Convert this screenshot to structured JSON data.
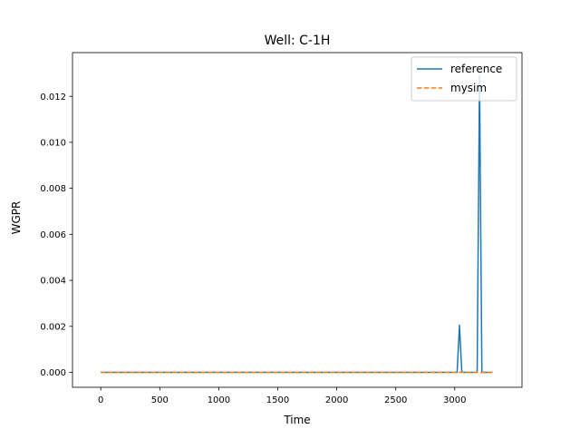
{
  "chart_data": {
    "type": "line",
    "title": "Well: C-1H",
    "xlabel": "Time",
    "ylabel": "WGPR",
    "xlim": [
      -240,
      3570
    ],
    "ylim": [
      -0.00065,
      0.0139
    ],
    "xticks": [
      0,
      500,
      1000,
      1500,
      2000,
      2500,
      3000
    ],
    "xtick_labels": [
      "0",
      "500",
      "1000",
      "1500",
      "2000",
      "2500",
      "3000"
    ],
    "yticks": [
      0.0,
      0.002,
      0.004,
      0.006,
      0.008,
      0.01,
      0.012
    ],
    "ytick_labels": [
      "0.000",
      "0.002",
      "0.004",
      "0.006",
      "0.008",
      "0.010",
      "0.012"
    ],
    "grid": false,
    "legend_position": "top-right",
    "series": [
      {
        "name": "reference",
        "color": "#1f77b4",
        "style": "solid",
        "x": [
          0,
          500,
          1000,
          1500,
          2000,
          2500,
          3020,
          3040,
          3060,
          3190,
          3210,
          3230,
          3320
        ],
        "y": [
          0,
          0,
          0,
          0,
          0,
          0,
          0,
          0.00205,
          0,
          0,
          0.0129,
          0,
          0
        ]
      },
      {
        "name": "mysim",
        "color": "#ff7f0e",
        "style": "dashed",
        "x": [
          0,
          500,
          1000,
          1500,
          2000,
          2500,
          3000,
          3320
        ],
        "y": [
          0,
          0,
          0,
          0,
          0,
          0,
          0,
          0
        ]
      }
    ]
  }
}
